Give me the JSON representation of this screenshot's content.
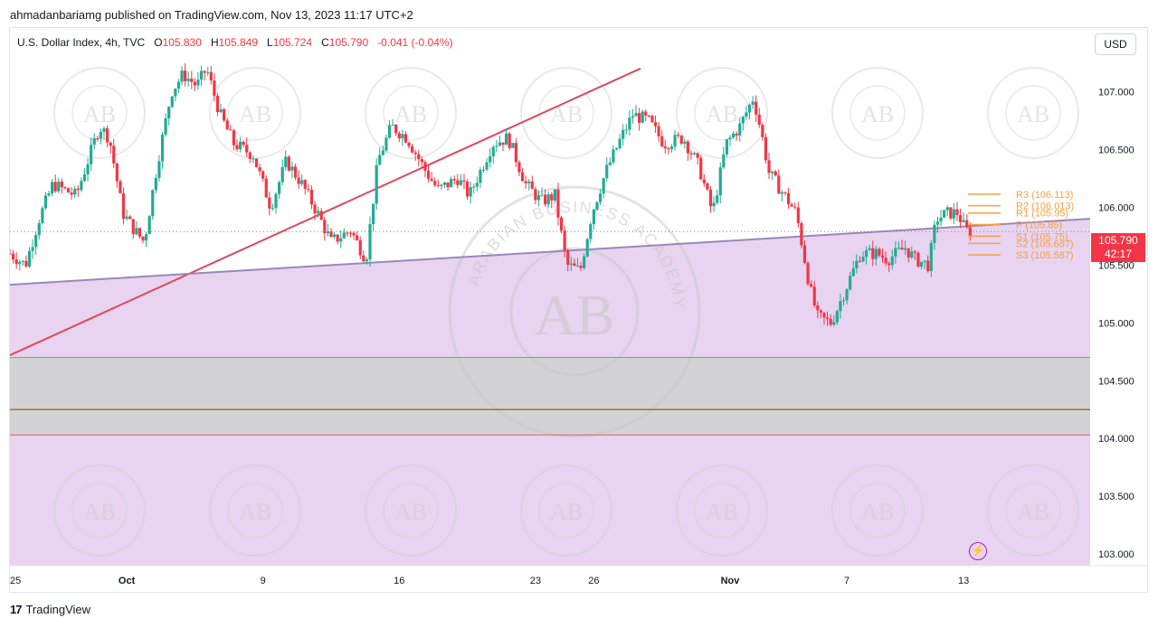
{
  "header": {
    "published_text": "ahmadanbariamg published on TradingView.com, Nov 13, 2023 11:17 UTC+2"
  },
  "legend": {
    "symbol": "U.S. Dollar Index, 4h, TVC",
    "o_label": "O",
    "o_value": "105.830",
    "h_label": "H",
    "h_value": "105.849",
    "l_label": "L",
    "l_value": "105.724",
    "c_label": "C",
    "c_value": "105.790",
    "change": "-0.041 (-0.04%)"
  },
  "currency_button": "USD",
  "last_price": {
    "value": "105.790",
    "countdown": "42:17"
  },
  "footer": {
    "brand": "TradingView",
    "logo_glyph": "17"
  },
  "alert_icon": "lightning-icon",
  "watermark": {
    "letters": "AB",
    "ring_text": "ARABIAN BUSINESS ACADEMY"
  },
  "colors": {
    "up": "#22ab94",
    "down": "#f23645",
    "zone": "#e8d3f0",
    "grey_zone": "#d3d3d6",
    "trend_red": "#e0485a",
    "trend_purple": "#9a88b8",
    "pivot": "#f5a142",
    "green_line": "#5cb85c",
    "brown_line": "#a0703a",
    "red_line": "#f25a5a"
  },
  "chart_data": {
    "type": "candlestick",
    "title": "U.S. Dollar Index, 4h, TVC",
    "ylim": [
      102.9,
      107.55
    ],
    "y_ticks": [
      "107.000",
      "106.500",
      "106.000",
      "105.500",
      "105.000",
      "104.500",
      "104.000",
      "103.500",
      "103.000"
    ],
    "y_tick_values": [
      107.0,
      106.5,
      106.0,
      105.5,
      105.0,
      104.5,
      104.0,
      103.5,
      103.0
    ],
    "x_ticks": [
      "25",
      "Oct",
      "9",
      "16",
      "23",
      "26",
      "Nov",
      "7",
      "13"
    ],
    "x_tick_days": [
      0,
      6,
      13,
      20,
      27,
      30,
      37,
      43,
      49
    ],
    "x_range_days": [
      0,
      55.5
    ],
    "last_close": 105.79,
    "pivot_levels": [
      {
        "label": "R3 (106.113)",
        "value": 106.113
      },
      {
        "label": "R2 (106.013)",
        "value": 106.013
      },
      {
        "label": "R1 (105.95)",
        "value": 105.95
      },
      {
        "label": "P (105.85)",
        "value": 105.85
      },
      {
        "label": "S1 (105.75)",
        "value": 105.75
      },
      {
        "label": "S2 (105.687)",
        "value": 105.687
      },
      {
        "label": "S3 (105.587)",
        "value": 105.587
      }
    ],
    "horizontal_lines": [
      {
        "name": "green",
        "value": 104.7
      },
      {
        "name": "brown",
        "value": 104.25
      },
      {
        "name": "red",
        "value": 104.03
      }
    ],
    "grey_zone": [
      104.7,
      104.03
    ],
    "trendlines": [
      {
        "name": "rising-red",
        "from": [
          0,
          104.72
        ],
        "to": [
          32.4,
          107.2
        ]
      },
      {
        "name": "support-purple",
        "from": [
          0,
          105.33
        ],
        "to": [
          55.5,
          105.9
        ]
      }
    ],
    "pivot_points": [
      [
        0,
        105.6
      ],
      [
        0.8,
        105.5
      ],
      [
        1.5,
        105.9
      ],
      [
        2.2,
        106.2
      ],
      [
        3.4,
        106.1
      ],
      [
        4.0,
        106.4
      ],
      [
        4.6,
        106.7
      ],
      [
        5.1,
        106.6
      ],
      [
        5.8,
        105.95
      ],
      [
        6.4,
        105.8
      ],
      [
        6.9,
        105.7
      ],
      [
        7.6,
        106.4
      ],
      [
        8.3,
        107.0
      ],
      [
        8.9,
        107.15
      ],
      [
        9.6,
        107.05
      ],
      [
        10.1,
        107.2
      ],
      [
        10.8,
        106.8
      ],
      [
        11.5,
        106.55
      ],
      [
        12.5,
        106.45
      ],
      [
        13.4,
        106.0
      ],
      [
        14.2,
        106.4
      ],
      [
        15.0,
        106.2
      ],
      [
        15.8,
        105.95
      ],
      [
        16.5,
        105.7
      ],
      [
        17.5,
        105.8
      ],
      [
        18.3,
        105.55
      ],
      [
        18.9,
        106.4
      ],
      [
        19.6,
        106.7
      ],
      [
        20.4,
        106.6
      ],
      [
        21.4,
        106.3
      ],
      [
        22.0,
        106.15
      ],
      [
        23.0,
        106.25
      ],
      [
        23.6,
        106.1
      ],
      [
        24.8,
        106.55
      ],
      [
        25.6,
        106.6
      ],
      [
        26.5,
        106.2
      ],
      [
        27.3,
        106.05
      ],
      [
        28.0,
        106.1
      ],
      [
        28.6,
        105.5
      ],
      [
        29.3,
        105.45
      ],
      [
        29.9,
        105.95
      ],
      [
        30.6,
        106.3
      ],
      [
        31.4,
        106.6
      ],
      [
        32.0,
        106.8
      ],
      [
        32.8,
        106.75
      ],
      [
        33.6,
        106.55
      ],
      [
        34.6,
        106.6
      ],
      [
        35.4,
        106.35
      ],
      [
        36.1,
        105.95
      ],
      [
        36.8,
        106.55
      ],
      [
        37.5,
        106.7
      ],
      [
        38.2,
        106.95
      ],
      [
        38.6,
        106.65
      ],
      [
        39.0,
        106.3
      ],
      [
        39.8,
        106.1
      ],
      [
        40.4,
        105.95
      ],
      [
        41.1,
        105.3
      ],
      [
        41.5,
        105.05
      ],
      [
        42.2,
        105.0
      ],
      [
        43.2,
        105.4
      ],
      [
        43.7,
        105.6
      ],
      [
        44.5,
        105.6
      ],
      [
        45.1,
        105.55
      ],
      [
        46.0,
        105.65
      ],
      [
        46.5,
        105.55
      ],
      [
        47.2,
        105.5
      ],
      [
        47.6,
        105.9
      ],
      [
        48.2,
        105.95
      ],
      [
        48.7,
        105.95
      ],
      [
        49.1,
        105.8
      ],
      [
        49.35,
        105.79
      ]
    ]
  }
}
